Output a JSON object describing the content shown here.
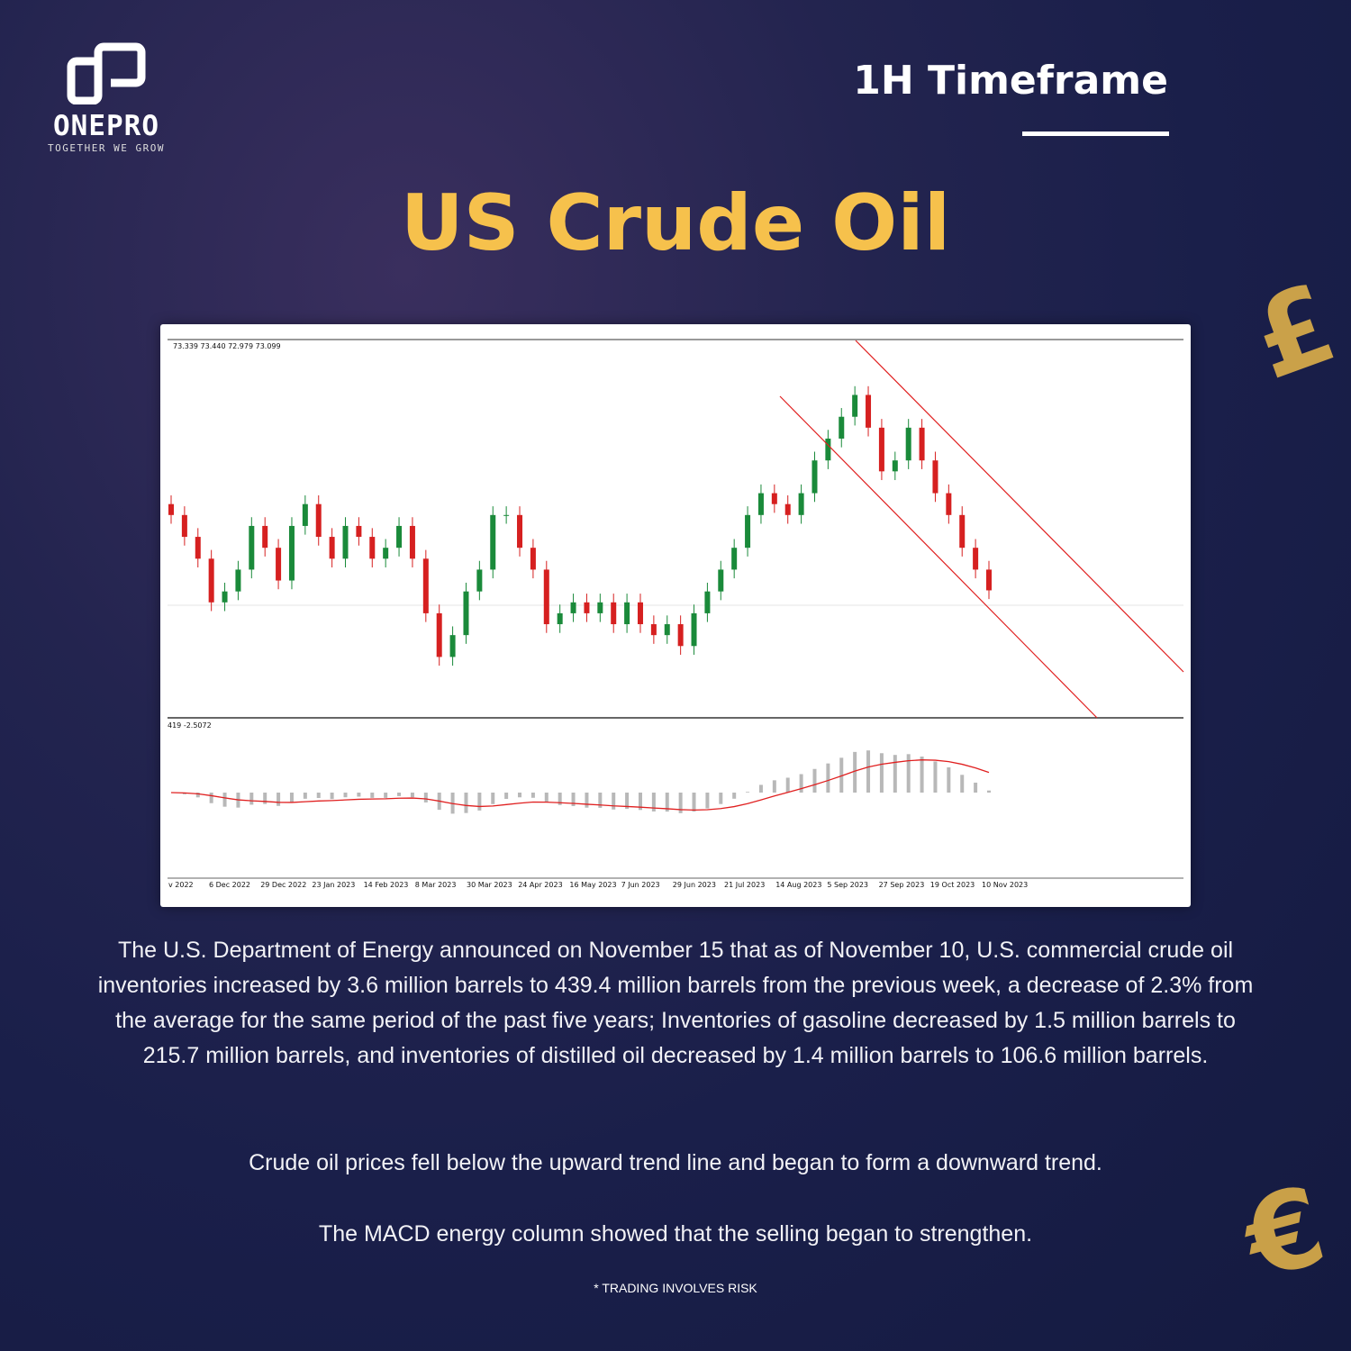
{
  "brand": {
    "name": "ONEPRO",
    "tagline": "TOGETHER WE GROW"
  },
  "header": {
    "timeframe": "1H Timeframe",
    "title": "US Crude Oil"
  },
  "chart_data": {
    "type": "candlestick",
    "ohlc_readout": "73.339 73.440 72.979 73.099",
    "indicator_readout": "419 -2.5072",
    "indicator": "MACD",
    "x_tick_labels": [
      "v 2022",
      "6 Dec 2022",
      "29 Dec 2022",
      "23 Jan 2023",
      "14 Feb 2023",
      "8 Mar 2023",
      "30 Mar 2023",
      "24 Apr 2023",
      "16 May 2023",
      "7 Jun 2023",
      "29 Jun 2023",
      "21 Jul 2023",
      "14 Aug 2023",
      "5 Sep 2023",
      "27 Sep 2023",
      "19 Oct 2023",
      "10 Nov 2023"
    ],
    "closes": [
      80,
      78,
      76,
      72,
      73,
      75,
      79,
      77,
      74,
      79,
      81,
      78,
      76,
      79,
      78,
      76,
      77,
      79,
      76,
      71,
      67,
      69,
      73,
      75,
      80,
      80,
      77,
      75,
      70,
      71,
      72,
      71,
      72,
      70,
      72,
      70,
      69,
      70,
      68,
      71,
      73,
      75,
      77,
      80,
      82,
      81,
      80,
      82,
      85,
      87,
      89,
      91,
      88,
      84,
      85,
      88,
      85,
      82,
      80,
      77,
      75,
      73.1
    ],
    "ylim": [
      62,
      95
    ],
    "colors": {
      "up": "#1a8a3a",
      "down": "#d62020",
      "trendline": "#e02020",
      "macd_hist": "#b8b8b8",
      "signal": "#e02020"
    }
  },
  "paragraphs": [
    "The U.S. Department of Energy announced on November 15 that as of November 10, U.S. commercial crude oil inventories increased by 3.6 million barrels to 439.4 million barrels from the previous week, a decrease of 2.3% from the average for the same period of the past five years; Inventories of gasoline decreased by 1.5 million barrels to 215.7 million barrels, and inventories of distilled oil decreased by 1.4 million barrels to 106.6 million barrels.",
    "Crude oil prices fell below the upward trend line and began to form a downward trend.",
    "The MACD energy column showed that the selling began to strengthen."
  ],
  "disclaimer": "* TRADING INVOLVES RISK"
}
